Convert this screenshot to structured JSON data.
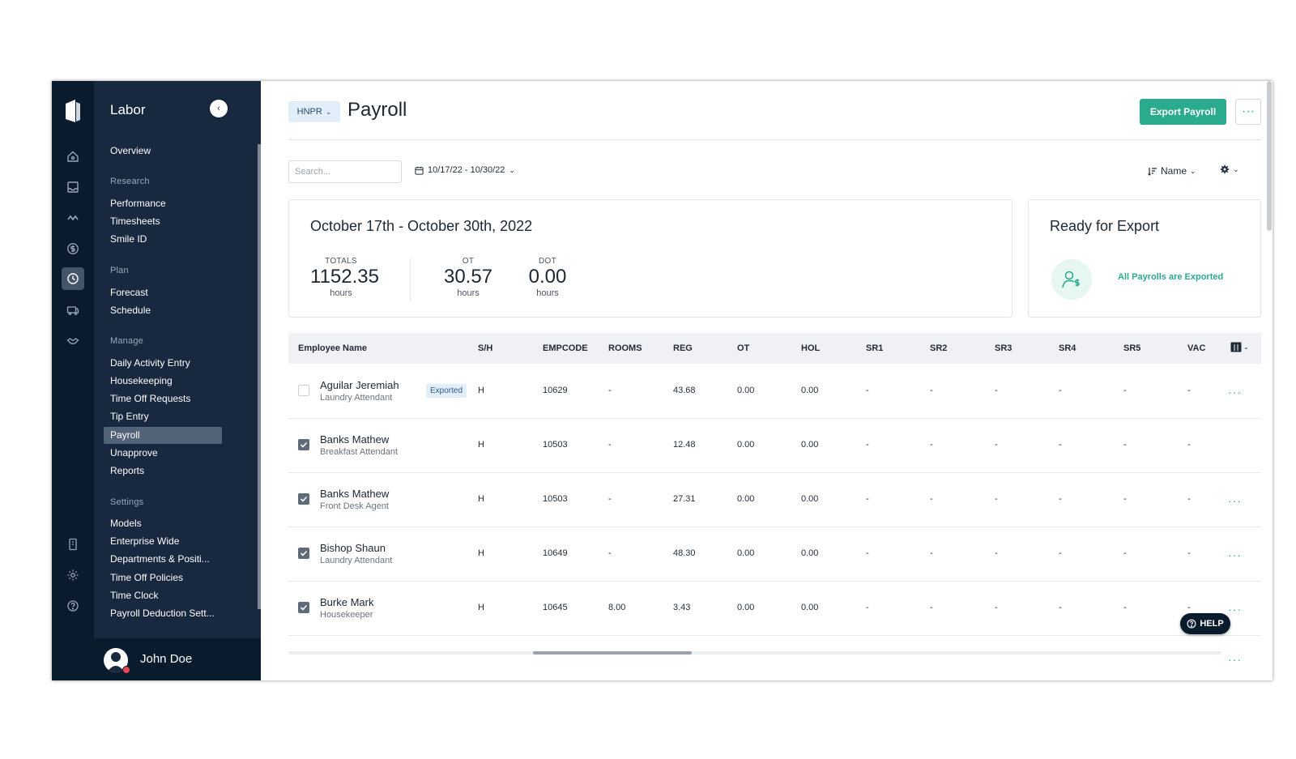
{
  "app": {
    "name": "Labor"
  },
  "sidebar": {
    "sections": [
      {
        "label": "",
        "items": [
          "Overview"
        ]
      },
      {
        "label": "Research",
        "items": [
          "Performance",
          "Timesheets",
          "Smile ID"
        ]
      },
      {
        "label": "Plan",
        "items": [
          "Forecast",
          "Schedule"
        ]
      },
      {
        "label": "Manage",
        "items": [
          "Daily Activity Entry",
          "Housekeeping",
          "Time Off Requests",
          "Tip Entry",
          "Payroll",
          "Unapprove",
          "Reports"
        ]
      },
      {
        "label": "Settings",
        "items": [
          "Models",
          "Enterprise Wide",
          "Departments & Positi...",
          "Time Off Policies",
          "Time Clock",
          "Payroll Deduction Sett..."
        ]
      }
    ],
    "active_item": "Payroll"
  },
  "user": {
    "name": "John Doe"
  },
  "header": {
    "property": "HNPR",
    "title": "Payroll",
    "export_label": "Export Payroll",
    "more_label": "···"
  },
  "filters": {
    "search_placeholder": "Search...",
    "date_range": "10/17/22 - 10/30/22",
    "sort_label": "Name"
  },
  "summary": {
    "title": "October 17th - October 30th, 2022",
    "stats": [
      {
        "label": "TOTALS",
        "value": "1152.35",
        "unit": "hours"
      },
      {
        "label": "OT",
        "value": "30.57",
        "unit": "hours"
      },
      {
        "label": "DOT",
        "value": "0.00",
        "unit": "hours"
      }
    ]
  },
  "export_card": {
    "title": "Ready for Export",
    "status": "All Payrolls are Exported"
  },
  "table": {
    "columns": [
      "Employee Name",
      "S/H",
      "EMPCODE",
      "ROOMS",
      "REG",
      "OT",
      "HOL",
      "SR1",
      "SR2",
      "SR3",
      "SR4",
      "SR5",
      "VAC"
    ],
    "rows": [
      {
        "name": "Aguilar Jeremiah",
        "role": "Laundry Attendant",
        "badge": "Exported",
        "checked": false,
        "sh": "H",
        "empcode": "10629",
        "rooms": "-",
        "reg": "43.68",
        "ot": "0.00",
        "hol": "0.00",
        "sr1": "-",
        "sr2": "-",
        "sr3": "-",
        "sr4": "-",
        "sr5": "-",
        "vac": "-",
        "more": true
      },
      {
        "name": "Banks Mathew",
        "role": "Breakfast Attendant",
        "badge": "",
        "checked": true,
        "sh": "H",
        "empcode": "10503",
        "rooms": "-",
        "reg": "12.48",
        "ot": "0.00",
        "hol": "0.00",
        "sr1": "-",
        "sr2": "-",
        "sr3": "-",
        "sr4": "-",
        "sr5": "-",
        "vac": "-",
        "more": false
      },
      {
        "name": "Banks Mathew",
        "role": "Front Desk Agent",
        "badge": "",
        "checked": true,
        "sh": "H",
        "empcode": "10503",
        "rooms": "-",
        "reg": "27.31",
        "ot": "0.00",
        "hol": "0.00",
        "sr1": "-",
        "sr2": "-",
        "sr3": "-",
        "sr4": "-",
        "sr5": "-",
        "vac": "-",
        "more": true
      },
      {
        "name": "Bishop Shaun",
        "role": "Laundry Attendant",
        "badge": "",
        "checked": true,
        "sh": "H",
        "empcode": "10649",
        "rooms": "-",
        "reg": "48.30",
        "ot": "0.00",
        "hol": "0.00",
        "sr1": "-",
        "sr2": "-",
        "sr3": "-",
        "sr4": "-",
        "sr5": "-",
        "vac": "-",
        "more": true
      },
      {
        "name": "Burke Mark",
        "role": "Housekeeper",
        "badge": "",
        "checked": true,
        "sh": "H",
        "empcode": "10645",
        "rooms": "8.00",
        "reg": "3.43",
        "ot": "0.00",
        "hol": "0.00",
        "sr1": "-",
        "sr2": "-",
        "sr3": "-",
        "sr4": "-",
        "sr5": "-",
        "vac": "-",
        "more": true
      }
    ]
  },
  "help": {
    "label": "HELP"
  },
  "icons": {
    "rail": [
      "home-icon",
      "inbox-icon",
      "activity-icon",
      "dollar-icon",
      "clock-icon",
      "bus-icon",
      "handshake-icon",
      "device-icon",
      "gear-icon",
      "help-circle-icon"
    ]
  },
  "colors": {
    "accent": "#2bab8e",
    "sidebar_bg": "#18293f",
    "rail_bg": "#0b1b2e",
    "active_item_bg": "#536377"
  }
}
